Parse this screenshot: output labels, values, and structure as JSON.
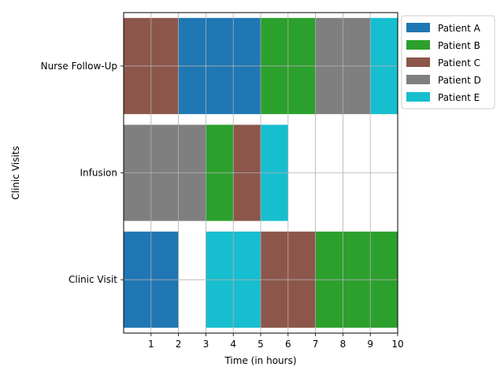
{
  "chart_data": {
    "type": "bar",
    "orientation": "horizontal-gantt",
    "xlabel": "Time (in hours)",
    "ylabel": "Clinic Visits",
    "xlim": [
      0,
      10
    ],
    "xticks": [
      1,
      2,
      3,
      4,
      5,
      6,
      7,
      8,
      9,
      10
    ],
    "grid": true,
    "legend_position": "outside-top-right",
    "categories": [
      "Clinic Visit",
      "Infusion",
      "Nurse Follow-Up"
    ],
    "series": [
      {
        "name": "Patient A",
        "color": "#1f77b4",
        "segments": [
          {
            "category": "Clinic Visit",
            "start": 0,
            "end": 2
          },
          {
            "category": "Nurse Follow-Up",
            "start": 2,
            "end": 5
          }
        ]
      },
      {
        "name": "Patient B",
        "color": "#2ca02c",
        "segments": [
          {
            "category": "Infusion",
            "start": 3,
            "end": 4
          },
          {
            "category": "Nurse Follow-Up",
            "start": 5,
            "end": 7
          },
          {
            "category": "Clinic Visit",
            "start": 7,
            "end": 10
          }
        ]
      },
      {
        "name": "Patient C",
        "color": "#8c564b",
        "segments": [
          {
            "category": "Nurse Follow-Up",
            "start": 0,
            "end": 2
          },
          {
            "category": "Infusion",
            "start": 4,
            "end": 5
          },
          {
            "category": "Clinic Visit",
            "start": 5,
            "end": 7
          }
        ]
      },
      {
        "name": "Patient D",
        "color": "#7f7f7f",
        "segments": [
          {
            "category": "Infusion",
            "start": 0,
            "end": 3
          },
          {
            "category": "Nurse Follow-Up",
            "start": 7,
            "end": 9
          }
        ]
      },
      {
        "name": "Patient E",
        "color": "#17becf",
        "segments": [
          {
            "category": "Clinic Visit",
            "start": 3,
            "end": 5
          },
          {
            "category": "Infusion",
            "start": 5,
            "end": 6
          },
          {
            "category": "Nurse Follow-Up",
            "start": 9,
            "end": 10
          }
        ]
      }
    ]
  }
}
